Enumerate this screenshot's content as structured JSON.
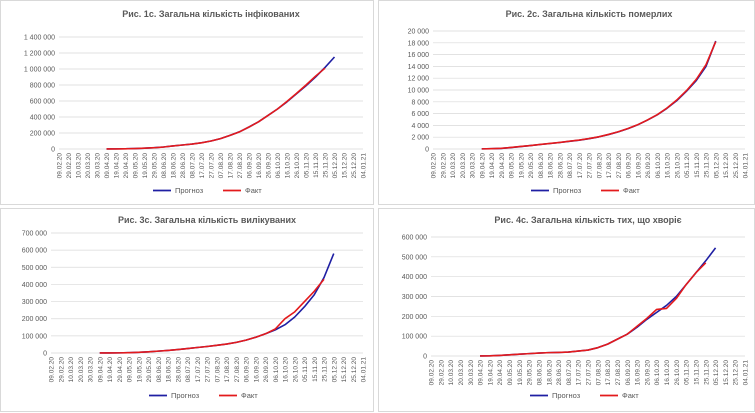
{
  "colors": {
    "forecast": "#1f1fa3",
    "fact": "#e31a1c",
    "grid": "#d9d9d9",
    "text": "#595959"
  },
  "legend": {
    "forecast": "Прогноз",
    "fact": "Факт"
  },
  "chart_data": [
    {
      "type": "line",
      "title": "Рис. 1с. Загальна кількість інфікованих",
      "xlabel": "",
      "ylabel": "",
      "ylim": [
        0,
        1400000
      ],
      "yticks": [
        "0",
        "200 000",
        "400 000",
        "600 000",
        "800 000",
        "1 000 000",
        "1 200 000",
        "1 400 000"
      ],
      "xticks": [
        "09.02.20",
        "29.02.20",
        "10.03.20",
        "20.03.20",
        "30.03.20",
        "09.04.20",
        "19.04.20",
        "29.04.20",
        "09.05.20",
        "19.05.20",
        "29.05.20",
        "08.06.20",
        "18.06.20",
        "28.06.20",
        "08.07.20",
        "17.07.20",
        "27.07.20",
        "07.08.20",
        "17.08.20",
        "27.08.20",
        "06.09.20",
        "16.09.20",
        "26.09.20",
        "06.10.20",
        "16.10.20",
        "26.10.20",
        "05.11.20",
        "15.11.20",
        "25.11.20",
        "05.12.20",
        "15.12.20",
        "25.12.20",
        "04.01.21"
      ],
      "legend_position": "bottom",
      "grid": true,
      "series": [
        {
          "name": "Прогноз",
          "x": [
            5,
            6,
            7,
            8,
            9,
            10,
            11,
            12,
            13,
            14,
            15,
            16,
            17,
            18,
            19,
            20,
            21,
            22,
            23,
            24,
            25,
            26,
            27,
            28,
            29
          ],
          "values": [
            500,
            1500,
            3000,
            6000,
            10000,
            16000,
            25000,
            38000,
            50000,
            62000,
            78000,
            100000,
            130000,
            170000,
            215000,
            275000,
            340000,
            420000,
            500000,
            590000,
            690000,
            790000,
            900000,
            1020000,
            1150000
          ]
        },
        {
          "name": "Факт",
          "x": [
            5,
            6,
            7,
            8,
            9,
            10,
            11,
            12,
            13,
            14,
            15,
            16,
            17,
            18,
            19,
            20,
            21,
            22,
            23,
            24,
            25,
            26,
            27,
            28
          ],
          "values": [
            400,
            1300,
            2800,
            5800,
            9800,
            15800,
            24800,
            37800,
            49800,
            61800,
            77800,
            99800,
            129800,
            169800,
            214800,
            274800,
            339800,
            419800,
            500000,
            595000,
            695000,
            800000,
            910000,
            1010000
          ]
        }
      ]
    },
    {
      "type": "line",
      "title": "Рис. 2с. Загальна кількість померлих",
      "xlabel": "",
      "ylabel": "",
      "ylim": [
        0,
        20000
      ],
      "yticks": [
        "0",
        "2 000",
        "4 000",
        "6 000",
        "8 000",
        "10 000",
        "12 000",
        "14 000",
        "16 000",
        "18 000",
        "20 000"
      ],
      "xticks": [
        "09.02.20",
        "29.02.20",
        "10.03.20",
        "20.03.20",
        "30.03.20",
        "09.04.20",
        "19.04.20",
        "29.04.20",
        "09.05.20",
        "19.05.20",
        "29.05.20",
        "08.06.20",
        "18.06.20",
        "28.06.20",
        "08.07.20",
        "17.07.20",
        "27.07.20",
        "07.08.20",
        "17.08.20",
        "27.08.20",
        "06.09.20",
        "16.09.20",
        "26.09.20",
        "06.10.20",
        "16.10.20",
        "26.10.20",
        "05.11.20",
        "15.11.20",
        "25.11.20",
        "05.12.20",
        "15.12.20",
        "25.12.20",
        "04.01.21"
      ],
      "legend_position": "bottom",
      "grid": true,
      "series": [
        {
          "name": "Прогноз",
          "x": [
            5,
            6,
            7,
            8,
            9,
            10,
            11,
            12,
            13,
            14,
            15,
            16,
            17,
            18,
            19,
            20,
            21,
            22,
            23,
            24,
            25,
            26,
            27,
            28,
            29
          ],
          "values": [
            20,
            50,
            100,
            250,
            420,
            580,
            760,
            930,
            1100,
            1300,
            1500,
            1750,
            2050,
            2450,
            2900,
            3450,
            4100,
            4900,
            5800,
            6900,
            8200,
            9800,
            11600,
            14000,
            18300
          ]
        },
        {
          "name": "Факт",
          "x": [
            5,
            6,
            7,
            8,
            9,
            10,
            11,
            12,
            13,
            14,
            15,
            16,
            17,
            18,
            19,
            20,
            21,
            22,
            23,
            24,
            25,
            26,
            27,
            28,
            29
          ],
          "values": [
            20,
            50,
            110,
            260,
            430,
            590,
            770,
            950,
            1120,
            1320,
            1520,
            1770,
            2070,
            2470,
            2920,
            3470,
            4120,
            4920,
            5820,
            6950,
            8300,
            9900,
            11800,
            14300,
            18200
          ]
        }
      ]
    },
    {
      "type": "line",
      "title": "Рис. 3с. Загальна кількість вилікуваних",
      "xlabel": "",
      "ylabel": "",
      "ylim": [
        0,
        700000
      ],
      "yticks": [
        "0",
        "100 000",
        "200 000",
        "300 000",
        "400 000",
        "500 000",
        "600 000",
        "700 000"
      ],
      "xticks": [
        "09.02.20",
        "29.02.20",
        "10.03.20",
        "20.03.20",
        "30.03.20",
        "09.04.20",
        "19.04.20",
        "29.04.20",
        "09.05.20",
        "19.05.20",
        "29.05.20",
        "08.06.20",
        "18.06.20",
        "28.06.20",
        "08.07.20",
        "17.07.20",
        "27.07.20",
        "07.08.20",
        "17.08.20",
        "27.08.20",
        "06.09.20",
        "16.09.20",
        "26.09.20",
        "06.10.20",
        "16.10.20",
        "26.10.20",
        "05.11.20",
        "15.11.20",
        "25.11.20",
        "05.12.20",
        "15.12.20",
        "25.12.20",
        "04.01.21"
      ],
      "legend_position": "bottom",
      "grid": true,
      "series": [
        {
          "name": "Прогноз",
          "x": [
            5,
            6,
            7,
            8,
            9,
            10,
            11,
            12,
            13,
            14,
            15,
            16,
            17,
            18,
            19,
            20,
            21,
            22,
            23,
            24,
            25,
            26,
            27,
            28,
            29
          ],
          "values": [
            100,
            300,
            800,
            2000,
            4000,
            7000,
            11000,
            15000,
            20000,
            26000,
            32000,
            38000,
            45000,
            52000,
            62000,
            75000,
            92000,
            112000,
            135000,
            165000,
            210000,
            270000,
            340000,
            440000,
            580000
          ]
        },
        {
          "name": "Факт",
          "x": [
            5,
            6,
            7,
            8,
            9,
            10,
            11,
            12,
            13,
            14,
            15,
            16,
            17,
            18,
            19,
            20,
            21,
            22,
            23,
            24,
            25,
            26,
            27,
            28
          ],
          "values": [
            100,
            300,
            800,
            2000,
            4000,
            7000,
            11000,
            15000,
            20000,
            26000,
            32000,
            38000,
            45000,
            52000,
            62000,
            75000,
            92000,
            112000,
            140000,
            200000,
            240000,
            300000,
            360000,
            430000
          ]
        }
      ]
    },
    {
      "type": "line",
      "title": "Рис. 4с. Загальна кількість тих, що хворіє",
      "xlabel": "",
      "ylabel": "",
      "ylim": [
        0,
        600000
      ],
      "yticks": [
        "0",
        "100 000",
        "200 000",
        "300 000",
        "400 000",
        "500 000",
        "600 000"
      ],
      "xticks": [
        "09.02.20",
        "29.02.20",
        "10.03.20",
        "20.03.20",
        "30.03.20",
        "09.04.20",
        "19.04.20",
        "29.04.20",
        "09.05.20",
        "19.05.20",
        "29.05.20",
        "08.06.20",
        "18.06.20",
        "28.06.20",
        "08.07.20",
        "17.07.20",
        "27.07.20",
        "07.08.20",
        "17.08.20",
        "27.08.20",
        "06.09.20",
        "16.09.20",
        "26.09.20",
        "06.10.20",
        "16.10.20",
        "26.10.20",
        "05.11.20",
        "15.11.20",
        "25.11.20",
        "05.12.20",
        "15.12.20",
        "25.12.20",
        "04.01.21"
      ],
      "legend_position": "bottom",
      "grid": true,
      "series": [
        {
          "name": "Прогноз",
          "x": [
            5,
            6,
            7,
            8,
            9,
            10,
            11,
            12,
            13,
            14,
            15,
            16,
            17,
            18,
            19,
            20,
            21,
            22,
            23,
            24,
            25,
            26,
            27,
            28,
            29
          ],
          "values": [
            200,
            1000,
            3000,
            6000,
            9000,
            12000,
            15000,
            17000,
            18000,
            20000,
            25000,
            30000,
            42000,
            60000,
            85000,
            110000,
            145000,
            185000,
            220000,
            255000,
            300000,
            360000,
            420000,
            480000,
            545000
          ]
        },
        {
          "name": "Факт",
          "x": [
            5,
            6,
            7,
            8,
            9,
            10,
            11,
            12,
            13,
            14,
            15,
            16,
            17,
            18,
            19,
            20,
            21,
            22,
            23,
            24,
            25,
            26,
            27,
            28
          ],
          "values": [
            200,
            1000,
            3000,
            6000,
            9000,
            12000,
            15000,
            17000,
            18000,
            20000,
            25000,
            30000,
            42000,
            60000,
            85000,
            110000,
            150000,
            190000,
            235000,
            240000,
            290000,
            360000,
            420000,
            470000
          ]
        }
      ]
    }
  ]
}
